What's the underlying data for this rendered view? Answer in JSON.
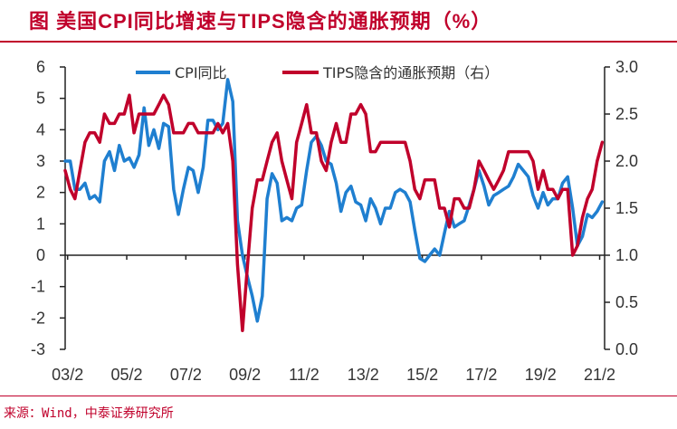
{
  "title": "图  美国CPI同比增速与TIPS隐含的通胀预期（%）",
  "source": "来源：Wind，中泰证券研究所",
  "chart_data": {
    "type": "line",
    "title": "图  美国CPI同比增速与TIPS隐含的通胀预期（%）",
    "x_tick_labels": [
      "03/2",
      "05/2",
      "07/2",
      "09/2",
      "11/2",
      "13/2",
      "15/2",
      "17/2",
      "19/2",
      "21/2"
    ],
    "x_tick_dates": [
      2003.083,
      2005.083,
      2007.083,
      2009.083,
      2011.083,
      2013.083,
      2015.083,
      2017.083,
      2019.083,
      2021.083
    ],
    "x_range": [
      2003.0,
      2021.25
    ],
    "y_left": {
      "min": -3,
      "max": 6,
      "ticks": [
        "-3",
        "-2",
        "-1",
        "0",
        "1",
        "2",
        "3",
        "4",
        "5",
        "6"
      ]
    },
    "y_right": {
      "min": 0.0,
      "max": 3.0,
      "ticks": [
        "0.0",
        "0.5",
        "1.0",
        "1.5",
        "2.0",
        "2.5",
        "3.0"
      ]
    },
    "grid": false,
    "legend_position": "top",
    "series": [
      {
        "name": "CPI同比",
        "axis": "left",
        "color": "#1f7fd0",
        "points": [
          [
            2003.0,
            3.0
          ],
          [
            2003.17,
            3.0
          ],
          [
            2003.33,
            2.1
          ],
          [
            2003.5,
            2.1
          ],
          [
            2003.67,
            2.3
          ],
          [
            2003.83,
            1.8
          ],
          [
            2004.0,
            1.9
          ],
          [
            2004.17,
            1.7
          ],
          [
            2004.33,
            3.0
          ],
          [
            2004.5,
            3.3
          ],
          [
            2004.67,
            2.7
          ],
          [
            2004.83,
            3.5
          ],
          [
            2005.0,
            3.0
          ],
          [
            2005.17,
            3.1
          ],
          [
            2005.33,
            2.8
          ],
          [
            2005.5,
            3.2
          ],
          [
            2005.67,
            4.7
          ],
          [
            2005.83,
            3.5
          ],
          [
            2006.0,
            4.0
          ],
          [
            2006.17,
            3.4
          ],
          [
            2006.33,
            4.2
          ],
          [
            2006.5,
            4.1
          ],
          [
            2006.67,
            2.1
          ],
          [
            2006.83,
            1.3
          ],
          [
            2007.0,
            2.1
          ],
          [
            2007.17,
            2.8
          ],
          [
            2007.33,
            2.7
          ],
          [
            2007.5,
            2.0
          ],
          [
            2007.67,
            2.8
          ],
          [
            2007.83,
            4.3
          ],
          [
            2008.0,
            4.3
          ],
          [
            2008.17,
            4.0
          ],
          [
            2008.33,
            4.2
          ],
          [
            2008.5,
            5.6
          ],
          [
            2008.67,
            4.9
          ],
          [
            2008.83,
            1.1
          ],
          [
            2009.0,
            0.0
          ],
          [
            2009.17,
            -0.7
          ],
          [
            2009.33,
            -1.3
          ],
          [
            2009.5,
            -2.1
          ],
          [
            2009.67,
            -1.3
          ],
          [
            2009.83,
            1.8
          ],
          [
            2010.0,
            2.6
          ],
          [
            2010.17,
            2.3
          ],
          [
            2010.33,
            1.1
          ],
          [
            2010.5,
            1.2
          ],
          [
            2010.67,
            1.1
          ],
          [
            2010.83,
            1.5
          ],
          [
            2011.0,
            1.6
          ],
          [
            2011.17,
            2.7
          ],
          [
            2011.33,
            3.6
          ],
          [
            2011.5,
            3.8
          ],
          [
            2011.67,
            3.5
          ],
          [
            2011.83,
            3.0
          ],
          [
            2012.0,
            2.9
          ],
          [
            2012.17,
            2.3
          ],
          [
            2012.33,
            1.4
          ],
          [
            2012.5,
            2.0
          ],
          [
            2012.67,
            2.2
          ],
          [
            2012.83,
            1.7
          ],
          [
            2013.0,
            1.6
          ],
          [
            2013.17,
            1.1
          ],
          [
            2013.33,
            1.8
          ],
          [
            2013.5,
            1.5
          ],
          [
            2013.67,
            1.0
          ],
          [
            2013.83,
            1.5
          ],
          [
            2014.0,
            1.5
          ],
          [
            2014.17,
            2.0
          ],
          [
            2014.33,
            2.1
          ],
          [
            2014.5,
            2.0
          ],
          [
            2014.67,
            1.7
          ],
          [
            2014.83,
            0.8
          ],
          [
            2015.0,
            -0.1
          ],
          [
            2015.17,
            -0.2
          ],
          [
            2015.33,
            0.0
          ],
          [
            2015.5,
            0.2
          ],
          [
            2015.67,
            0.0
          ],
          [
            2015.83,
            0.7
          ],
          [
            2016.0,
            1.4
          ],
          [
            2016.17,
            0.9
          ],
          [
            2016.33,
            1.0
          ],
          [
            2016.5,
            1.1
          ],
          [
            2016.67,
            1.6
          ],
          [
            2016.83,
            2.1
          ],
          [
            2017.0,
            2.7
          ],
          [
            2017.17,
            2.2
          ],
          [
            2017.33,
            1.6
          ],
          [
            2017.5,
            1.9
          ],
          [
            2017.67,
            2.0
          ],
          [
            2017.83,
            2.1
          ],
          [
            2018.0,
            2.2
          ],
          [
            2018.17,
            2.5
          ],
          [
            2018.33,
            2.9
          ],
          [
            2018.5,
            2.7
          ],
          [
            2018.67,
            2.5
          ],
          [
            2018.83,
            1.9
          ],
          [
            2019.0,
            1.5
          ],
          [
            2019.17,
            2.0
          ],
          [
            2019.33,
            1.6
          ],
          [
            2019.5,
            1.8
          ],
          [
            2019.67,
            1.8
          ],
          [
            2019.83,
            2.3
          ],
          [
            2020.0,
            2.5
          ],
          [
            2020.17,
            1.5
          ],
          [
            2020.33,
            0.3
          ],
          [
            2020.5,
            0.6
          ],
          [
            2020.67,
            1.3
          ],
          [
            2020.83,
            1.2
          ],
          [
            2021.0,
            1.4
          ],
          [
            2021.17,
            1.7
          ]
        ]
      },
      {
        "name": "TIPS隐含的通胀预期（右）",
        "axis": "right",
        "color": "#c0002b",
        "points": [
          [
            2003.0,
            1.9
          ],
          [
            2003.17,
            1.7
          ],
          [
            2003.33,
            1.6
          ],
          [
            2003.5,
            1.9
          ],
          [
            2003.67,
            2.2
          ],
          [
            2003.83,
            2.3
          ],
          [
            2004.0,
            2.3
          ],
          [
            2004.17,
            2.2
          ],
          [
            2004.33,
            2.5
          ],
          [
            2004.5,
            2.4
          ],
          [
            2004.67,
            2.4
          ],
          [
            2004.83,
            2.5
          ],
          [
            2005.0,
            2.5
          ],
          [
            2005.17,
            2.7
          ],
          [
            2005.33,
            2.3
          ],
          [
            2005.5,
            2.5
          ],
          [
            2005.67,
            2.5
          ],
          [
            2005.83,
            2.5
          ],
          [
            2006.0,
            2.5
          ],
          [
            2006.17,
            2.6
          ],
          [
            2006.33,
            2.7
          ],
          [
            2006.5,
            2.6
          ],
          [
            2006.67,
            2.3
          ],
          [
            2006.83,
            2.3
          ],
          [
            2007.0,
            2.3
          ],
          [
            2007.17,
            2.4
          ],
          [
            2007.33,
            2.4
          ],
          [
            2007.5,
            2.3
          ],
          [
            2007.67,
            2.3
          ],
          [
            2007.83,
            2.3
          ],
          [
            2008.0,
            2.3
          ],
          [
            2008.17,
            2.4
          ],
          [
            2008.33,
            2.3
          ],
          [
            2008.5,
            2.4
          ],
          [
            2008.67,
            2.0
          ],
          [
            2008.83,
            0.9
          ],
          [
            2009.0,
            0.2
          ],
          [
            2009.17,
            0.9
          ],
          [
            2009.33,
            1.5
          ],
          [
            2009.5,
            1.8
          ],
          [
            2009.67,
            1.8
          ],
          [
            2009.83,
            2.0
          ],
          [
            2010.0,
            2.2
          ],
          [
            2010.17,
            2.3
          ],
          [
            2010.33,
            2.0
          ],
          [
            2010.5,
            1.8
          ],
          [
            2010.67,
            1.6
          ],
          [
            2010.83,
            2.2
          ],
          [
            2011.0,
            2.4
          ],
          [
            2011.17,
            2.6
          ],
          [
            2011.33,
            2.3
          ],
          [
            2011.5,
            2.3
          ],
          [
            2011.67,
            2.0
          ],
          [
            2011.83,
            1.9
          ],
          [
            2012.0,
            2.2
          ],
          [
            2012.17,
            2.4
          ],
          [
            2012.33,
            2.2
          ],
          [
            2012.5,
            2.2
          ],
          [
            2012.67,
            2.5
          ],
          [
            2012.83,
            2.5
          ],
          [
            2013.0,
            2.6
          ],
          [
            2013.17,
            2.5
          ],
          [
            2013.33,
            2.1
          ],
          [
            2013.5,
            2.1
          ],
          [
            2013.67,
            2.2
          ],
          [
            2013.83,
            2.2
          ],
          [
            2014.0,
            2.2
          ],
          [
            2014.17,
            2.2
          ],
          [
            2014.33,
            2.2
          ],
          [
            2014.5,
            2.2
          ],
          [
            2014.67,
            2.0
          ],
          [
            2014.83,
            1.7
          ],
          [
            2015.0,
            1.6
          ],
          [
            2015.17,
            1.8
          ],
          [
            2015.33,
            1.8
          ],
          [
            2015.5,
            1.8
          ],
          [
            2015.67,
            1.5
          ],
          [
            2015.83,
            1.5
          ],
          [
            2016.0,
            1.3
          ],
          [
            2016.17,
            1.6
          ],
          [
            2016.33,
            1.6
          ],
          [
            2016.5,
            1.5
          ],
          [
            2016.67,
            1.5
          ],
          [
            2016.83,
            1.7
          ],
          [
            2017.0,
            2.0
          ],
          [
            2017.17,
            1.9
          ],
          [
            2017.33,
            1.8
          ],
          [
            2017.5,
            1.7
          ],
          [
            2017.67,
            1.8
          ],
          [
            2017.83,
            1.9
          ],
          [
            2018.0,
            2.1
          ],
          [
            2018.17,
            2.1
          ],
          [
            2018.33,
            2.1
          ],
          [
            2018.5,
            2.1
          ],
          [
            2018.67,
            2.1
          ],
          [
            2018.83,
            2.0
          ],
          [
            2019.0,
            1.7
          ],
          [
            2019.17,
            1.9
          ],
          [
            2019.33,
            1.7
          ],
          [
            2019.5,
            1.7
          ],
          [
            2019.67,
            1.6
          ],
          [
            2019.83,
            1.7
          ],
          [
            2020.0,
            1.7
          ],
          [
            2020.17,
            1.0
          ],
          [
            2020.33,
            1.1
          ],
          [
            2020.5,
            1.4
          ],
          [
            2020.67,
            1.6
          ],
          [
            2020.83,
            1.7
          ],
          [
            2021.0,
            2.0
          ],
          [
            2021.17,
            2.2
          ]
        ]
      }
    ]
  }
}
